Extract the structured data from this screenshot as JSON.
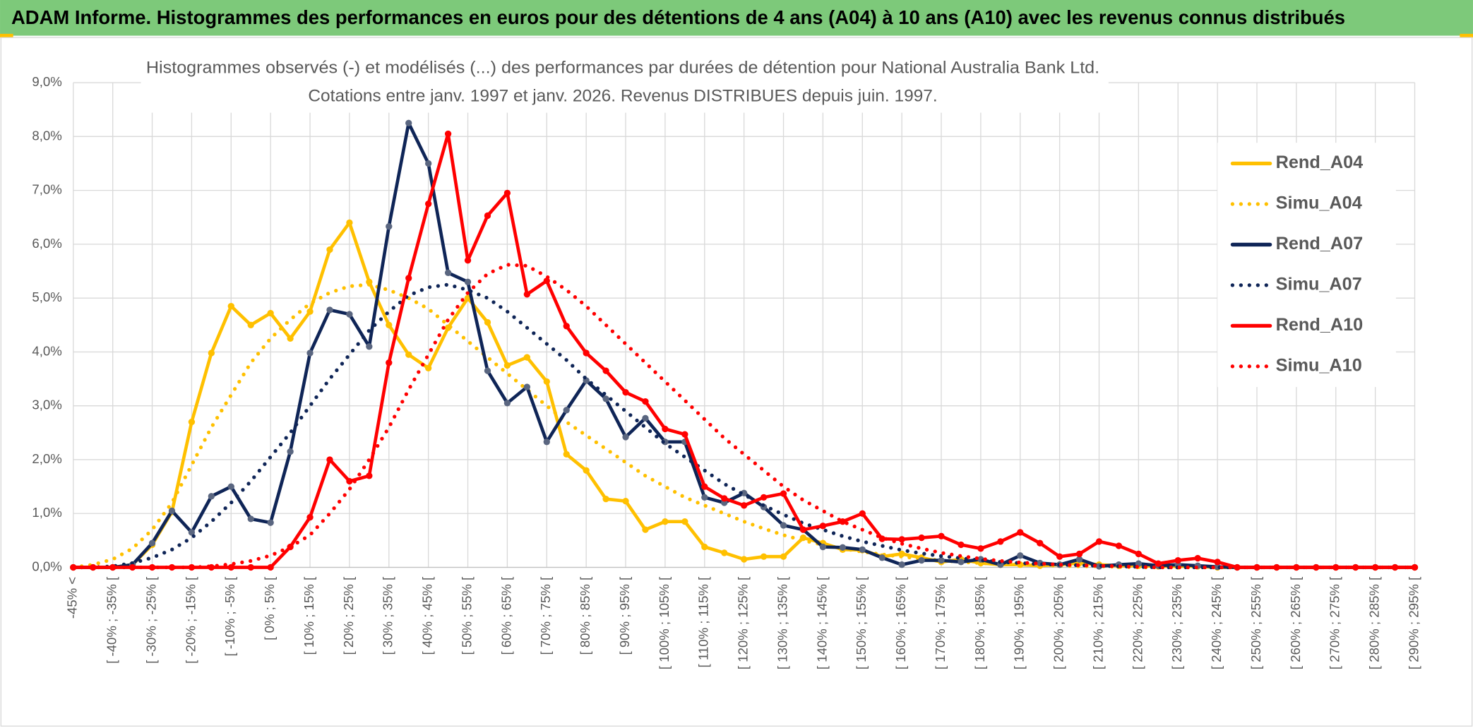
{
  "chart_data": {
    "type": "line",
    "title": "ADAM Informe. Histogrammes des performances en euros pour des détentions de 4 ans (A04) à 10 ans (A10) avec les revenus connus distribués",
    "subtitle": [
      "Histogrammes observés (-) et modélisés (...) des performances par durées de détention pour National Australia Bank Ltd.",
      "Cotations entre janv. 1997 et janv. 2026. Revenus DISTRIBUES depuis juin. 1997."
    ],
    "categories": [
      "-45% <",
      null,
      "[ -40% ; -35% [",
      null,
      "[ -30% ; -25% [",
      null,
      "[ -20% ; -15% [",
      null,
      "[ -10% ; -5% [",
      null,
      "[ 0% ; 5% [",
      null,
      "[ 10% ; 15% [",
      null,
      "[ 20% ; 25% [",
      null,
      "[ 30% ; 35% [",
      null,
      "[ 40% ; 45% [",
      null,
      "[ 50% ; 55% [",
      null,
      "[ 60% ; 65% [",
      null,
      "[ 70% ; 75% [",
      null,
      "[ 80% ; 85% [",
      null,
      "[ 90% ; 95% [",
      null,
      "[ 100% ; 105% [",
      null,
      "[ 110% ; 115% [",
      null,
      "[ 120% ; 125% [",
      null,
      "[ 130% ; 135% [",
      null,
      "[ 140% ; 145% [",
      null,
      "[ 150% ; 155% [",
      null,
      "[ 160% ; 165% [",
      null,
      "[ 170% ; 175% [",
      null,
      "[ 180% ; 185% [",
      null,
      "[ 190% ; 195% [",
      null,
      "[ 200% ; 205% [",
      null,
      "[ 210% ; 215% [",
      null,
      "[ 220% ; 225% [",
      null,
      "[ 230% ; 235% [",
      null,
      "[ 240% ; 245% [",
      null,
      "[ 250% ; 255% [",
      null,
      "[ 260% ; 265% [",
      null,
      "[ 270% ; 275% [",
      null,
      "[ 280% ; 285% [",
      null,
      "[ 290% ; 295% ["
    ],
    "series": [
      {
        "name": "Rend_A04",
        "color": "#FFC000",
        "style": "solid",
        "markers": true,
        "values": [
          0,
          0,
          0,
          0.05,
          0.42,
          1.03,
          2.7,
          3.98,
          4.85,
          4.5,
          4.72,
          4.25,
          4.75,
          5.9,
          6.4,
          5.3,
          4.5,
          3.95,
          3.7,
          4.45,
          5.0,
          4.55,
          3.75,
          3.9,
          3.45,
          2.1,
          1.8,
          1.27,
          1.23,
          0.7,
          0.85,
          0.85,
          0.38,
          0.27,
          0.15,
          0.2,
          0.2,
          0.55,
          0.45,
          0.33,
          0.32,
          0.2,
          0.25,
          0.18,
          0.1,
          0.15,
          0.08,
          0.05,
          0.05,
          0.03,
          0.05,
          0.08,
          0.05,
          0.03,
          0.03,
          0.02,
          0.02,
          0.02,
          0,
          0,
          0,
          0,
          0,
          0,
          0,
          0,
          0,
          0,
          0
        ]
      },
      {
        "name": "Simu_A04",
        "color": "#FFC000",
        "style": "dotted",
        "markers": false,
        "values": [
          0,
          0.05,
          0.15,
          0.35,
          0.7,
          1.2,
          1.9,
          2.6,
          3.2,
          3.8,
          4.25,
          4.6,
          4.9,
          5.1,
          5.22,
          5.25,
          5.15,
          5.0,
          4.8,
          4.5,
          4.2,
          3.9,
          3.6,
          3.3,
          3.0,
          2.7,
          2.45,
          2.2,
          1.95,
          1.7,
          1.5,
          1.3,
          1.15,
          1.0,
          0.85,
          0.72,
          0.6,
          0.5,
          0.42,
          0.35,
          0.29,
          0.24,
          0.2,
          0.16,
          0.13,
          0.1,
          0.08,
          0.06,
          0.05,
          0.04,
          0.03,
          0.02,
          0.02,
          0.01,
          0,
          0,
          0,
          0,
          0,
          0,
          0,
          0,
          0,
          0,
          0,
          0,
          0,
          0,
          0
        ]
      },
      {
        "name": "Rend_A07",
        "color": "#0F2557",
        "style": "solid",
        "markers": true,
        "values": [
          0,
          0,
          0,
          0.05,
          0.45,
          1.05,
          0.65,
          1.32,
          1.5,
          0.9,
          0.83,
          2.15,
          3.98,
          4.78,
          4.7,
          4.1,
          6.33,
          8.25,
          7.5,
          5.47,
          5.3,
          3.65,
          3.05,
          3.35,
          2.33,
          2.92,
          3.47,
          3.13,
          2.42,
          2.77,
          2.33,
          2.33,
          1.3,
          1.2,
          1.38,
          1.12,
          0.78,
          0.7,
          0.38,
          0.37,
          0.33,
          0.18,
          0.05,
          0.13,
          0.13,
          0.1,
          0.15,
          0.05,
          0.22,
          0.08,
          0.05,
          0.15,
          0.02,
          0.05,
          0.07,
          0.03,
          0.05,
          0.03,
          0.01,
          0,
          0,
          0,
          0,
          0,
          0,
          0,
          0,
          0,
          0
        ]
      },
      {
        "name": "Simu_A07",
        "color": "#0F2557",
        "style": "dotted",
        "markers": false,
        "values": [
          0,
          0,
          0.02,
          0.08,
          0.18,
          0.33,
          0.55,
          0.85,
          1.2,
          1.6,
          2.05,
          2.5,
          3.0,
          3.5,
          3.95,
          4.4,
          4.75,
          5.05,
          5.2,
          5.25,
          5.15,
          5.0,
          4.75,
          4.45,
          4.15,
          3.85,
          3.5,
          3.2,
          2.9,
          2.6,
          2.3,
          2.05,
          1.8,
          1.55,
          1.35,
          1.15,
          0.98,
          0.82,
          0.7,
          0.58,
          0.48,
          0.4,
          0.32,
          0.26,
          0.21,
          0.17,
          0.13,
          0.1,
          0.08,
          0.06,
          0.05,
          0.04,
          0.03,
          0.02,
          0.01,
          0,
          0,
          0,
          0,
          0,
          0,
          0,
          0,
          0,
          0,
          0,
          0,
          0,
          0
        ]
      },
      {
        "name": "Rend_A10",
        "color": "#FF0000",
        "style": "solid",
        "markers": true,
        "values": [
          0,
          0,
          0,
          0,
          0,
          0,
          0,
          0,
          0,
          0,
          0,
          0.38,
          0.93,
          2.0,
          1.6,
          1.7,
          3.8,
          5.37,
          6.75,
          8.05,
          5.7,
          6.53,
          6.95,
          5.07,
          5.32,
          4.48,
          3.98,
          3.65,
          3.25,
          3.08,
          2.57,
          2.47,
          1.5,
          1.28,
          1.15,
          1.3,
          1.37,
          0.7,
          0.77,
          0.85,
          1.0,
          0.53,
          0.52,
          0.55,
          0.58,
          0.42,
          0.35,
          0.48,
          0.65,
          0.45,
          0.2,
          0.25,
          0.48,
          0.4,
          0.25,
          0.07,
          0.13,
          0.17,
          0.1,
          0,
          0,
          0,
          0,
          0,
          0,
          0,
          0,
          0,
          0
        ]
      },
      {
        "name": "Simu_A10",
        "color": "#FF0000",
        "style": "dotted",
        "markers": false,
        "values": [
          0,
          0,
          0,
          0,
          0,
          0,
          0,
          0.02,
          0.06,
          0.12,
          0.22,
          0.38,
          0.6,
          1.0,
          1.45,
          2.0,
          2.6,
          3.3,
          3.95,
          4.6,
          5.1,
          5.45,
          5.62,
          5.6,
          5.4,
          5.15,
          4.85,
          4.5,
          4.15,
          3.8,
          3.45,
          3.1,
          2.75,
          2.4,
          2.1,
          1.8,
          1.5,
          1.25,
          1.05,
          0.85,
          0.7,
          0.55,
          0.44,
          0.35,
          0.27,
          0.21,
          0.16,
          0.12,
          0.09,
          0.07,
          0.05,
          0.04,
          0.03,
          0.02,
          0.01,
          0,
          0,
          0,
          0,
          0,
          0,
          0,
          0,
          0,
          0,
          0,
          0,
          0,
          0
        ]
      }
    ],
    "ylim": [
      0,
      9
    ],
    "yticks": [
      {
        "value": 0,
        "label": "0,0%"
      },
      {
        "value": 1,
        "label": "1,0%"
      },
      {
        "value": 2,
        "label": "2,0%"
      },
      {
        "value": 3,
        "label": "3,0%"
      },
      {
        "value": 4,
        "label": "4,0%"
      },
      {
        "value": 5,
        "label": "5,0%"
      },
      {
        "value": 6,
        "label": "6,0%"
      },
      {
        "value": 7,
        "label": "7,0%"
      },
      {
        "value": 8,
        "label": "8,0%"
      },
      {
        "value": 9,
        "label": "9,0%"
      }
    ],
    "grid": true,
    "legend": "right"
  }
}
